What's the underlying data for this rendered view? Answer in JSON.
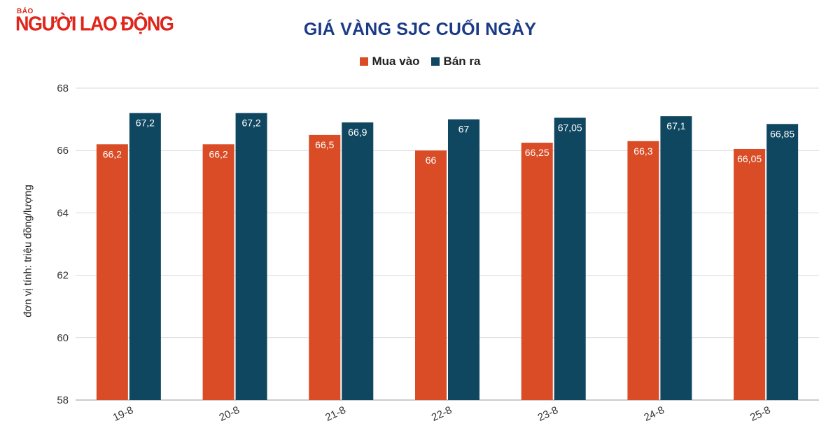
{
  "brand": {
    "small": "BÁO",
    "name": "NGƯỜI LAO ĐỘNG",
    "color": "#e0251b"
  },
  "chart_data": {
    "type": "bar",
    "title": "GIÁ VÀNG SJC CUỐI NGÀY",
    "ylabel": "đơn vị tính: triệu đồng/lượng",
    "xlabel": "",
    "categories": [
      "19-8",
      "20-8",
      "21-8",
      "22-8",
      "23-8",
      "24-8",
      "25-8"
    ],
    "series": [
      {
        "name": "Mua vào",
        "color": "#d94c26",
        "values": [
          66.2,
          66.2,
          66.5,
          66,
          66.25,
          66.3,
          66.05
        ],
        "labels": [
          "66,2",
          "66,2",
          "66,5",
          "66",
          "66,25",
          "66,3",
          "66,05"
        ]
      },
      {
        "name": "Bán ra",
        "color": "#0f4760",
        "values": [
          67.2,
          67.2,
          66.9,
          67,
          67.05,
          67.1,
          66.85
        ],
        "labels": [
          "67,2",
          "67,2",
          "66,9",
          "67",
          "67,05",
          "67,1",
          "66,85"
        ]
      }
    ],
    "ylim": [
      58,
      68
    ],
    "yticks": [
      58,
      60,
      62,
      64,
      66,
      68
    ],
    "grid": true,
    "legend": "top-center"
  }
}
